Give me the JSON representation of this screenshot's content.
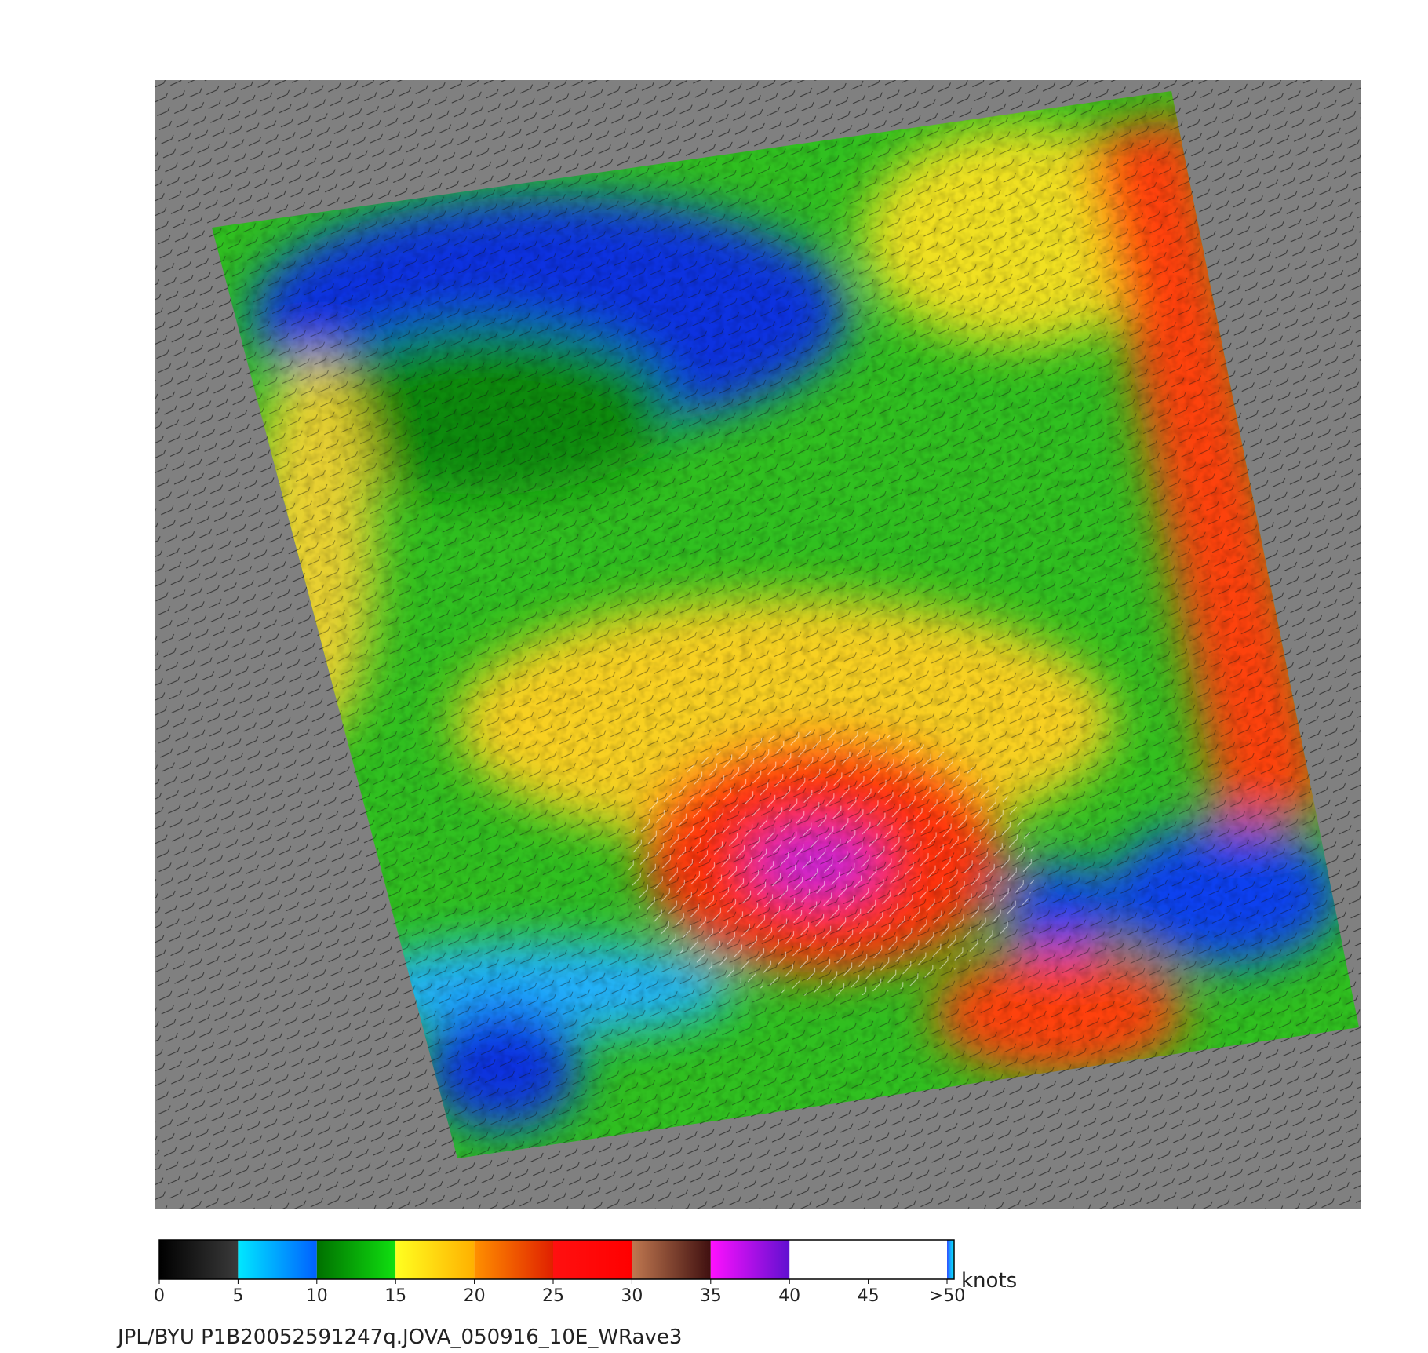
{
  "map": {
    "colorbar": {
      "ticks": [
        0,
        5,
        10,
        15,
        20,
        25,
        30,
        35,
        40,
        45,
        {
          "value": 50,
          "label": ">50"
        }
      ],
      "lim": [
        0,
        50
      ],
      "colors": [
        [
          "#000000",
          "#3a3a3a"
        ],
        [
          "#00e8ff",
          "#0060ff"
        ],
        [
          "#007000",
          "#10e010"
        ],
        [
          "#ffff20",
          "#ffb000"
        ],
        [
          "#ff9000",
          "#e02000"
        ],
        [
          "#ff1010",
          "#ff0000"
        ],
        [
          "#c07850",
          "#401010"
        ],
        [
          "#ff10ff",
          "#6010d0"
        ],
        [
          "#3050ff",
          "#00ffff"
        ]
      ],
      "unit": "knots"
    },
    "footer": "JPL/BYU  P1B20052591247q.JOVA_050916_10E_WRave3"
  }
}
